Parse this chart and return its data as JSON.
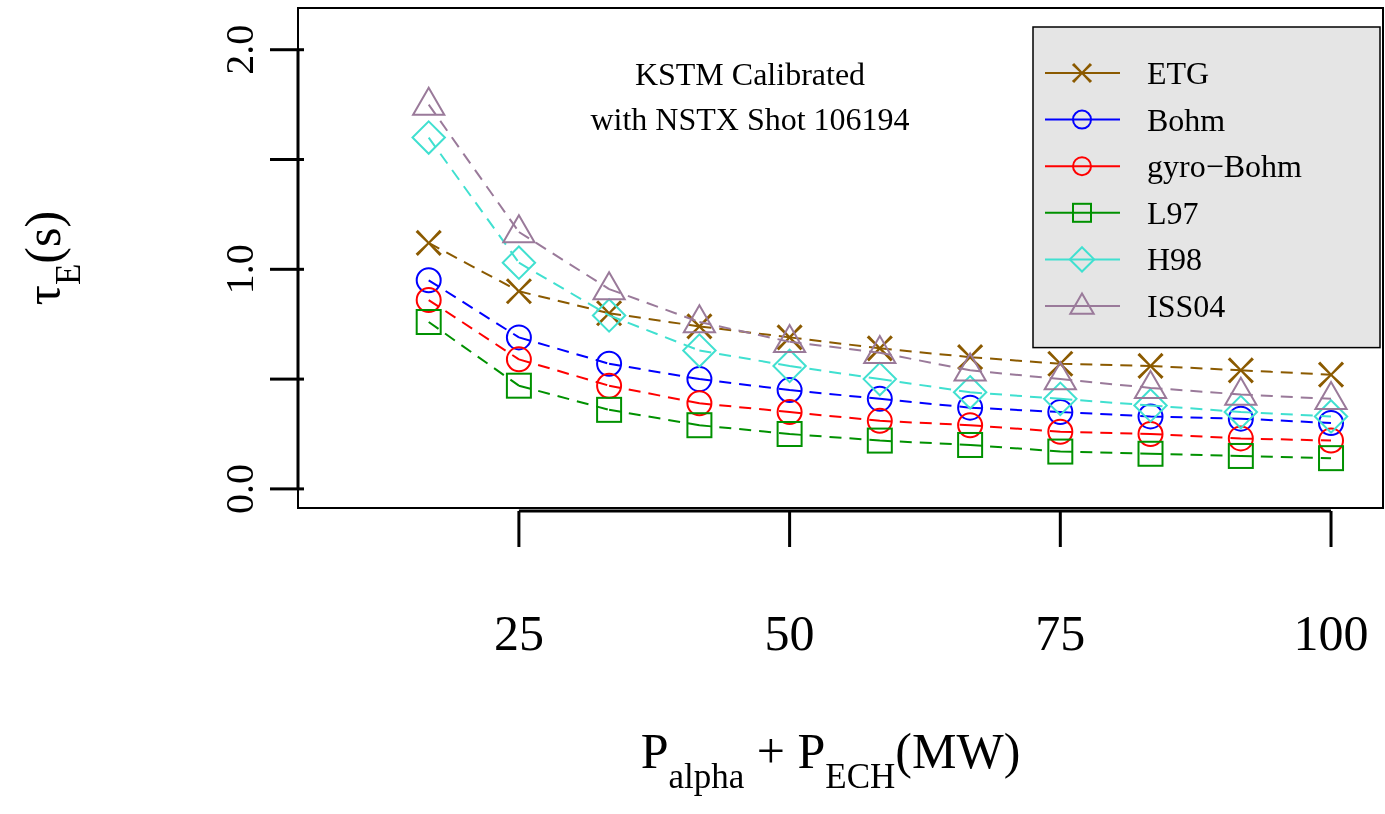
{
  "chart_data": {
    "type": "line",
    "xlabel": "P$_{alpha}$ + P$_{ECH}$(MW)",
    "ylabel": "τ$_{E}$(s)",
    "annotations": [
      "KSTM Calibrated\nwith NSTX Shot 106194"
    ],
    "x": [
      16.67,
      25,
      33.33,
      41.67,
      50,
      58.33,
      66.67,
      75,
      83.33,
      91.67,
      100
    ],
    "xlim": [
      4.6,
      104.8
    ],
    "xticks": [
      25,
      50,
      75,
      100
    ],
    "ylim": [
      -0.087,
      2.19
    ],
    "yticks": [
      {
        "value": 0,
        "label": "0.0"
      },
      {
        "value": 0.5,
        "label": null
      },
      {
        "value": 1,
        "label": "1.0"
      },
      {
        "value": 1.5,
        "label": null
      },
      {
        "value": 2,
        "label": "2.0"
      }
    ],
    "grid": false,
    "legend": "top right",
    "line_style": "dashed",
    "series": [
      {
        "name": "ETG",
        "color": "#8b5a00",
        "marker": "cross",
        "values": [
          1.12,
          0.9,
          0.8,
          0.74,
          0.69,
          0.64,
          0.6,
          0.57,
          0.56,
          0.54,
          0.52
        ]
      },
      {
        "name": "Bohm",
        "color": "#0000ff",
        "marker": "circle",
        "values": [
          0.95,
          0.69,
          0.57,
          0.5,
          0.45,
          0.41,
          0.37,
          0.35,
          0.33,
          0.32,
          0.3
        ]
      },
      {
        "name": "gyro−Bohm",
        "color": "#ff0000",
        "marker": "circle",
        "values": [
          0.86,
          0.59,
          0.47,
          0.39,
          0.35,
          0.31,
          0.29,
          0.26,
          0.25,
          0.23,
          0.22
        ]
      },
      {
        "name": "L97",
        "color": "#009100",
        "marker": "square",
        "values": [
          0.76,
          0.47,
          0.36,
          0.29,
          0.25,
          0.22,
          0.2,
          0.17,
          0.16,
          0.15,
          0.14
        ]
      },
      {
        "name": "H98",
        "color": "#40e0d0",
        "marker": "diamond",
        "values": [
          1.6,
          1.03,
          0.79,
          0.63,
          0.56,
          0.5,
          0.44,
          0.41,
          0.38,
          0.35,
          0.33
        ]
      },
      {
        "name": "ISS04",
        "color": "#9a7a9a",
        "marker": "triangle",
        "values": [
          1.75,
          1.17,
          0.91,
          0.76,
          0.67,
          0.62,
          0.54,
          0.5,
          0.46,
          0.43,
          0.41
        ]
      }
    ]
  }
}
